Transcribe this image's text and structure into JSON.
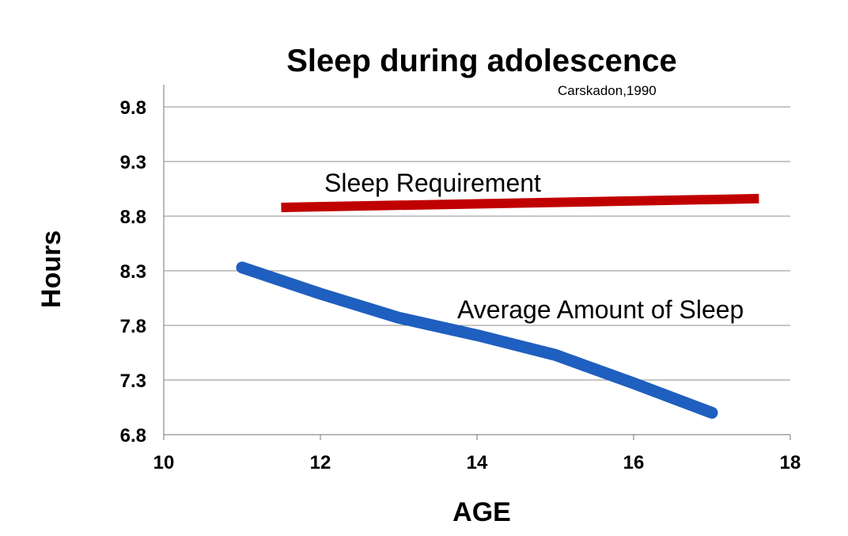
{
  "chart_data": {
    "type": "line",
    "title": "Sleep during adolescence",
    "subtitle": "Carskadon,1990",
    "xlabel": "AGE",
    "ylabel": "Hours",
    "xlim": [
      10,
      18
    ],
    "ylim": [
      6.8,
      10.0
    ],
    "x_ticks": [
      10,
      12,
      14,
      16,
      18
    ],
    "y_ticks": [
      6.8,
      7.3,
      7.8,
      8.3,
      8.8,
      9.3,
      9.8
    ],
    "grid": "horizontal",
    "series": [
      {
        "label": "Sleep Requirement",
        "color": "#c00000",
        "x": [
          11.5,
          17.6
        ],
        "y": [
          8.88,
          8.96
        ]
      },
      {
        "label": "Average Amount of Sleep",
        "color": "#1f5fbf",
        "x": [
          11,
          12,
          13,
          14,
          15,
          16,
          17
        ],
        "y": [
          8.33,
          8.09,
          7.87,
          7.71,
          7.53,
          7.27,
          7.0
        ]
      }
    ]
  }
}
